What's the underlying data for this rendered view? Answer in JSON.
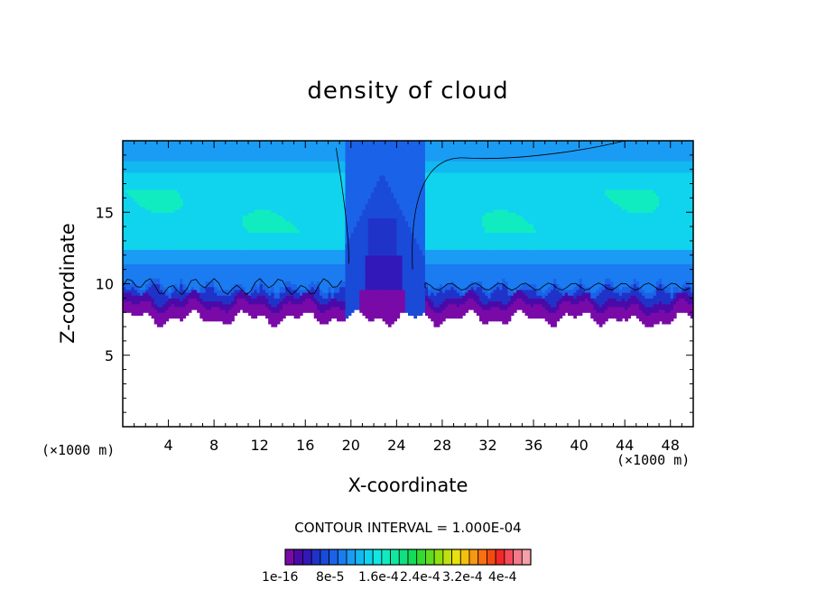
{
  "chart_data": {
    "type": "heatmap",
    "title": "density of cloud",
    "xlabel": "X-coordinate",
    "ylabel": "Z-coordinate",
    "x_unit": "(×1000 m)",
    "z_unit": "(×1000 m)",
    "xlim": [
      0,
      50
    ],
    "ylim": [
      0,
      20
    ],
    "x_ticks": [
      4,
      8,
      12,
      16,
      20,
      24,
      28,
      32,
      36,
      40,
      44,
      48
    ],
    "y_ticks": [
      5,
      10,
      15
    ],
    "contour_interval": "CONTOUR INTERVAL = 1.000E-04",
    "colorbar": {
      "colors": [
        "#7a0aa8",
        "#4b0aa8",
        "#3318b8",
        "#2033c8",
        "#1a4ad8",
        "#1a63e8",
        "#1a7cf0",
        "#1a9cf4",
        "#12b8f0",
        "#10d4ee",
        "#10e8e0",
        "#10ecc0",
        "#10e8a0",
        "#10e080",
        "#14dc58",
        "#30dc30",
        "#60dc20",
        "#90e010",
        "#c0e010",
        "#e8e010",
        "#f4c010",
        "#f89810",
        "#f87010",
        "#f44c10",
        "#f02828",
        "#f44a5a",
        "#f47a88",
        "#f4a0a8"
      ],
      "labels": [
        "1e-16",
        "8e-5",
        "1.6e-4",
        "2.4e-4",
        "3.2e-4",
        "4e-4"
      ]
    }
  }
}
